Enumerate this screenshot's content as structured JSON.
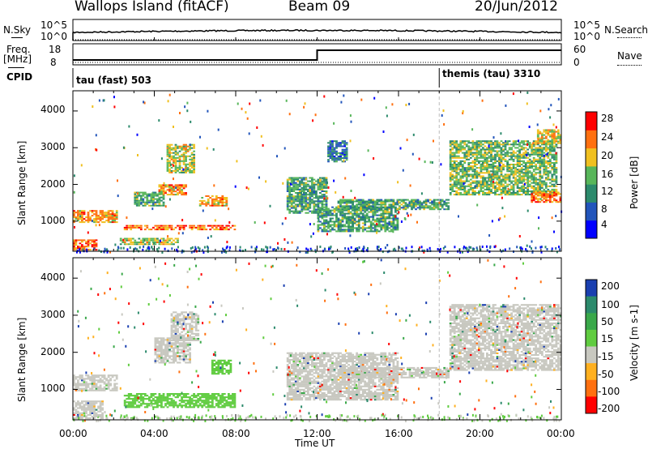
{
  "header": {
    "station": "Wallops Island (fitACF)",
    "beam": "Beam 09",
    "date": "20/Jun/2012"
  },
  "top_panels": {
    "nsky_label": "N.Sky",
    "nsky_ticks": [
      "10^5",
      "10^0"
    ],
    "nsearch_label": "N.Search",
    "nsearch_ticks": [
      "10^5",
      "10^0"
    ],
    "freq_label": "Freq.",
    "freq_unit": "[MHz]",
    "freq_ticks": [
      "18",
      "8"
    ],
    "nave_label": "Nave",
    "nave_ticks": [
      "60",
      "0"
    ],
    "cpid_label": "CPID",
    "cpid_segments": [
      {
        "label": "tau (fast) 503",
        "start_hour": 0
      },
      {
        "label": "themis (tau) 3310",
        "start_hour": 18
      }
    ]
  },
  "x_axis": {
    "title": "Time UT",
    "ticks": [
      "00:00",
      "04:00",
      "08:00",
      "12:00",
      "16:00",
      "20:00",
      "00:00"
    ],
    "range_hours": [
      0,
      24
    ]
  },
  "chart_data": [
    {
      "type": "heatmap",
      "title": "",
      "ylabel": "Slant Range [km]",
      "yticks": [
        "1000",
        "2000",
        "3000",
        "4000"
      ],
      "ylim": [
        180,
        4550
      ],
      "xlim": [
        0,
        24
      ],
      "colorbar": {
        "label": "Power [dB]",
        "ticks": [
          "4",
          "8",
          "12",
          "16",
          "20",
          "24",
          "28"
        ],
        "colors": [
          "#0000ff",
          "#2255bb",
          "#2c8a6c",
          "#58b65a",
          "#f0c020",
          "#ff7010",
          "#ff0000"
        ]
      },
      "echo_regions": [
        {
          "x": [
            0.0,
            2.2
          ],
          "y": [
            950,
            1300
          ],
          "value": 20
        },
        {
          "x": [
            0.0,
            1.2
          ],
          "y": [
            200,
            500
          ],
          "value": 22
        },
        {
          "x": [
            2.5,
            8.0
          ],
          "y": [
            750,
            900
          ],
          "value": 22
        },
        {
          "x": [
            2.3,
            5.2
          ],
          "y": [
            350,
            550
          ],
          "value": 16
        },
        {
          "x": [
            4.2,
            5.6
          ],
          "y": [
            1700,
            2000
          ],
          "value": 20
        },
        {
          "x": [
            6.2,
            7.6
          ],
          "y": [
            1400,
            1700
          ],
          "value": 20
        },
        {
          "x": [
            3.0,
            4.5
          ],
          "y": [
            1400,
            1800
          ],
          "value": 12
        },
        {
          "x": [
            4.6,
            6.0
          ],
          "y": [
            2300,
            3100
          ],
          "value": 16
        },
        {
          "x": [
            10.5,
            12.5
          ],
          "y": [
            1200,
            2200
          ],
          "value": 12
        },
        {
          "x": [
            12.0,
            16.0
          ],
          "y": [
            700,
            1400
          ],
          "value": 12
        },
        {
          "x": [
            13.0,
            18.5
          ],
          "y": [
            1300,
            1600
          ],
          "value": 12
        },
        {
          "x": [
            12.5,
            13.5
          ],
          "y": [
            2600,
            3200
          ],
          "value": 8
        },
        {
          "x": [
            18.5,
            23.8
          ],
          "y": [
            1700,
            3200
          ],
          "value": 14
        },
        {
          "x": [
            22.5,
            24.0
          ],
          "y": [
            1500,
            1800
          ],
          "value": 22
        },
        {
          "x": [
            22.8,
            24.0
          ],
          "y": [
            3100,
            3500
          ],
          "value": 18
        }
      ]
    },
    {
      "type": "heatmap",
      "title": "",
      "ylabel": "Slant Range [km]",
      "yticks": [
        "1000",
        "2000",
        "3000",
        "4000"
      ],
      "ylim": [
        180,
        4550
      ],
      "xlim": [
        0,
        24
      ],
      "colorbar": {
        "label": "Velocity [m s-1]",
        "ticks": [
          "200",
          "100",
          "50",
          "15",
          "-15",
          "-50",
          "-100",
          "-200"
        ],
        "colors": [
          "#1a3fb0",
          "#2c8a6c",
          "#3aa84a",
          "#60cc40",
          "#c8c8c0",
          "#ffb020",
          "#ff7010",
          "#ff0000"
        ]
      },
      "echo_regions": [
        {
          "x": [
            0.0,
            2.2
          ],
          "y": [
            950,
            1400
          ],
          "value": 0
        },
        {
          "x": [
            0.0,
            1.5
          ],
          "y": [
            200,
            700
          ],
          "value": 0
        },
        {
          "x": [
            2.5,
            8.0
          ],
          "y": [
            500,
            900
          ],
          "value": 40
        },
        {
          "x": [
            4.0,
            5.8
          ],
          "y": [
            1700,
            2400
          ],
          "value": 0
        },
        {
          "x": [
            6.8,
            7.8
          ],
          "y": [
            1400,
            1800
          ],
          "value": 40
        },
        {
          "x": [
            10.5,
            16.0
          ],
          "y": [
            700,
            2000
          ],
          "value": 0
        },
        {
          "x": [
            13.0,
            18.5
          ],
          "y": [
            1300,
            1600
          ],
          "value": 0
        },
        {
          "x": [
            18.5,
            24.0
          ],
          "y": [
            1500,
            3300
          ],
          "value": 0
        },
        {
          "x": [
            4.8,
            6.2
          ],
          "y": [
            2300,
            3100
          ],
          "value": 0
        }
      ]
    }
  ]
}
